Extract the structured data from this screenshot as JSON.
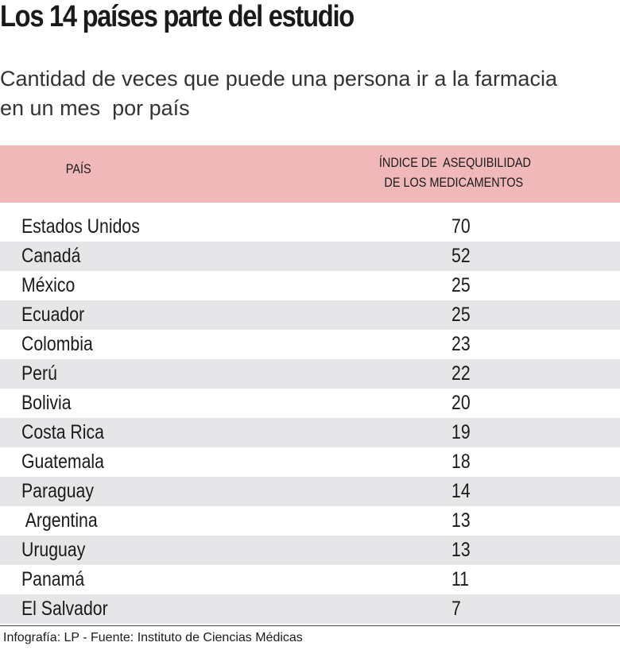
{
  "header": {
    "title": "Los 14 países parte del estudio",
    "subtitle_lines": [
      "Cantidad de veces que puede una persona ir a la farmacia",
      "en un mes  por país"
    ]
  },
  "table": {
    "columns": [
      "PAÍS",
      "ÍNDICE DE  ASEQUIBILIDAD",
      "DE LOS MEDICAMENTOS"
    ],
    "rows": [
      [
        "Estados Unidos",
        70
      ],
      [
        "Canadá",
        52
      ],
      [
        "México",
        25
      ],
      [
        "Ecuador",
        25
      ],
      [
        "Colombia",
        23
      ],
      [
        "Perú",
        22
      ],
      [
        "Bolivia",
        20
      ],
      [
        "Costa Rica",
        19
      ],
      [
        "Guatemala",
        18
      ],
      [
        "Paraguay",
        14
      ],
      [
        " Argentina",
        13
      ],
      [
        "Uruguay",
        13
      ],
      [
        "Panamá",
        11
      ],
      [
        "El Salvador",
        7
      ]
    ]
  },
  "footer": "Infografía: LP - Fuente: Instituto de Ciencias Médicas"
}
